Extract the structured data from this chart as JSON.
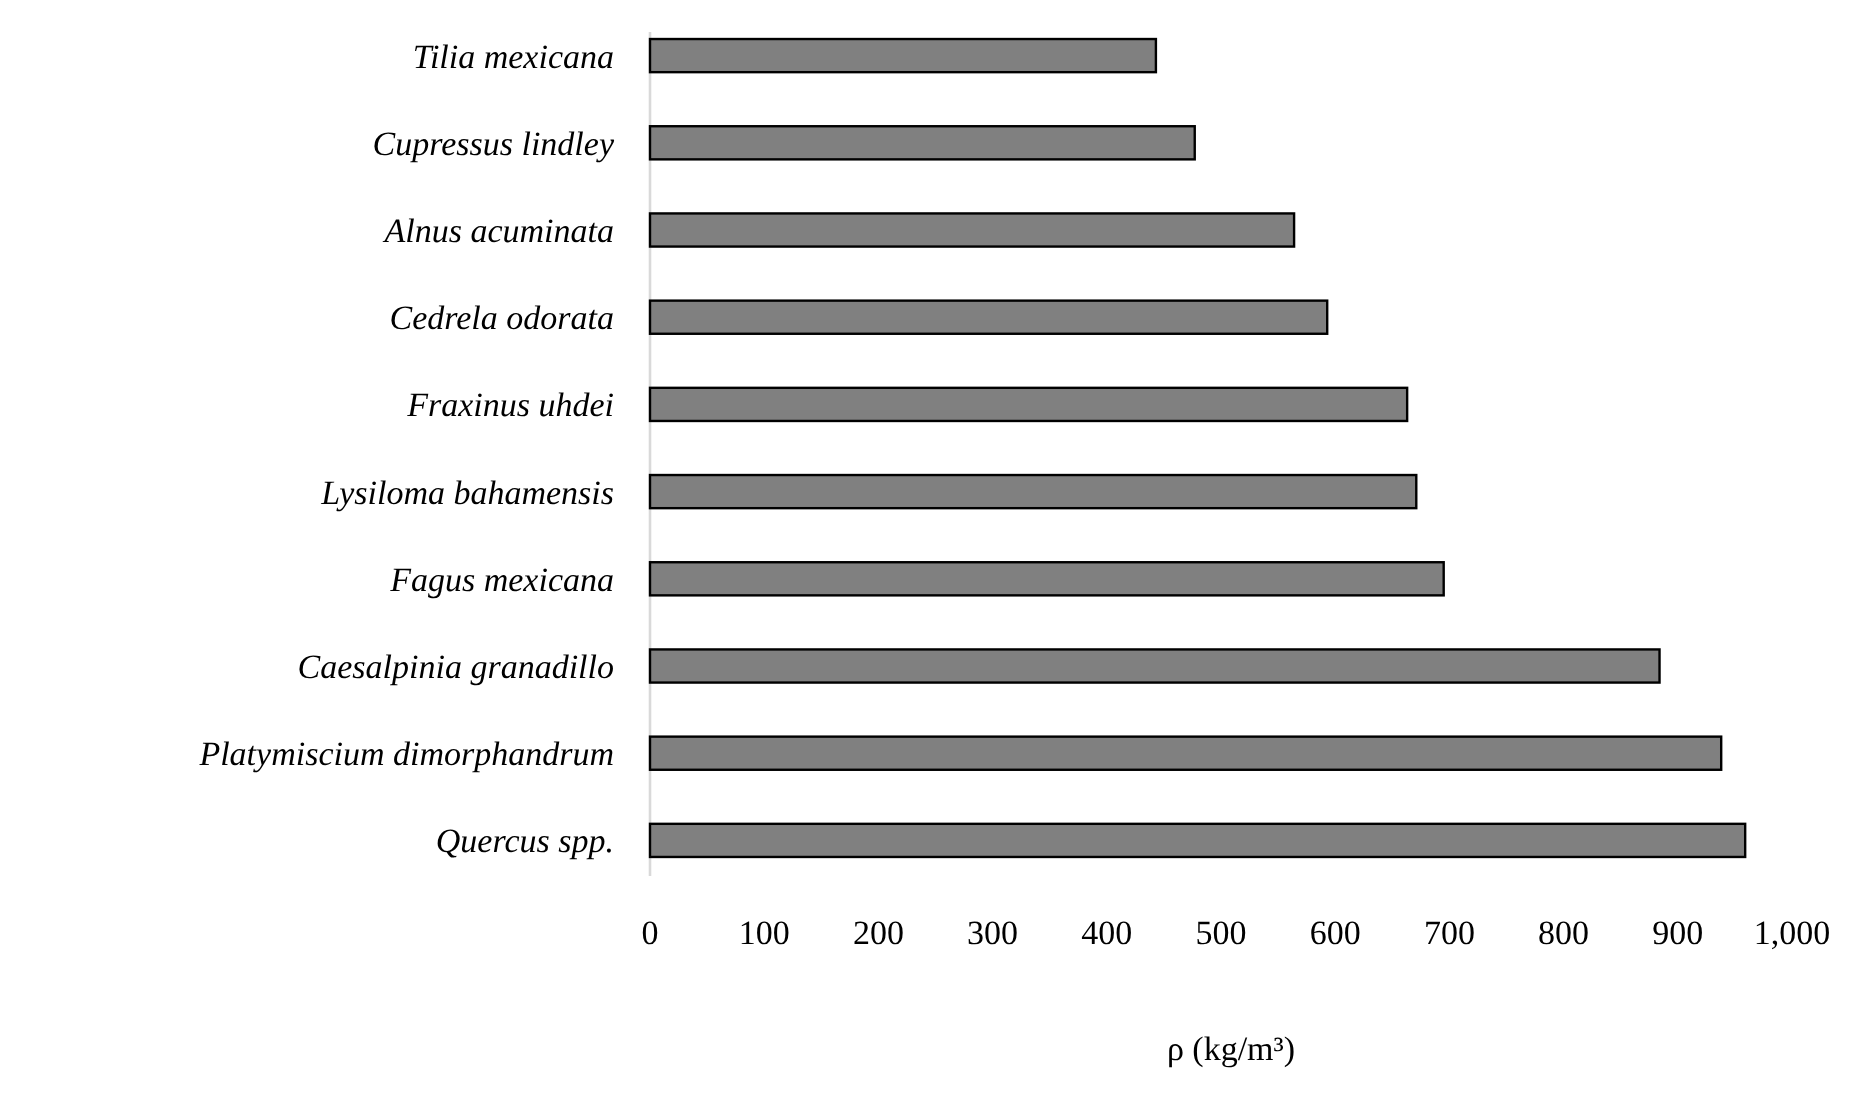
{
  "chart_data": {
    "type": "bar",
    "orientation": "horizontal",
    "xlabel": "ρ  (kg/m³)",
    "categories": [
      "Tilia mexicana",
      "Cupressus lindley",
      "Alnus acuminata",
      "Cedrela odorata",
      "Fraxinus uhdei",
      "Lysiloma bahamensis",
      "Fagus mexicana",
      "Caesalpinia granadillo",
      "Platymiscium dimorphandrum",
      "Quercus spp."
    ],
    "values": [
      443,
      477,
      564,
      593,
      663,
      671,
      695,
      884,
      938,
      959
    ],
    "color": "#808080",
    "xlim": [
      0,
      1000
    ],
    "xticks": [
      0,
      100,
      200,
      300,
      400,
      500,
      600,
      700,
      800,
      900,
      {
        "value": 1000,
        "label": "1,000"
      }
    ],
    "grid": false
  }
}
